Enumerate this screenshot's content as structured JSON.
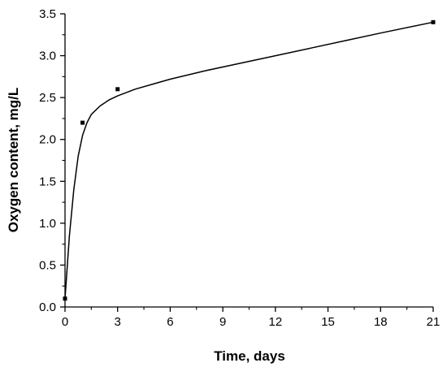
{
  "chart_data": {
    "type": "scatter",
    "xlabel": "Time, days",
    "ylabel": "Oxygen content, mg/L",
    "xlim": [
      0,
      21
    ],
    "ylim": [
      0,
      3.5
    ],
    "xticks": [
      0,
      3,
      6,
      9,
      12,
      15,
      18,
      21
    ],
    "yticks": [
      0.0,
      0.5,
      1.0,
      1.5,
      2.0,
      2.5,
      3.0,
      3.5
    ],
    "xtick_labels": [
      "0",
      "3",
      "6",
      "9",
      "12",
      "15",
      "18",
      "21"
    ],
    "ytick_labels": [
      "0.0",
      "0.5",
      "1.0",
      "1.5",
      "2.0",
      "2.5",
      "3.0",
      "3.5"
    ],
    "grid": false,
    "series": [
      {
        "type": "scatter",
        "marker": "square",
        "x": [
          0,
          1,
          3,
          21
        ],
        "y": [
          0.1,
          2.2,
          2.6,
          3.4
        ],
        "color": "#000000"
      },
      {
        "type": "line",
        "style": "fitted-curve",
        "x": [
          0,
          0.25,
          0.5,
          0.75,
          1,
          1.25,
          1.5,
          2,
          2.5,
          3,
          4,
          5,
          6,
          8,
          10,
          12,
          14,
          16,
          18,
          21
        ],
        "y": [
          0.1,
          0.85,
          1.4,
          1.8,
          2.05,
          2.2,
          2.3,
          2.4,
          2.47,
          2.52,
          2.6,
          2.66,
          2.72,
          2.82,
          2.91,
          3.0,
          3.09,
          3.18,
          3.27,
          3.4
        ],
        "color": "#000000"
      }
    ]
  }
}
